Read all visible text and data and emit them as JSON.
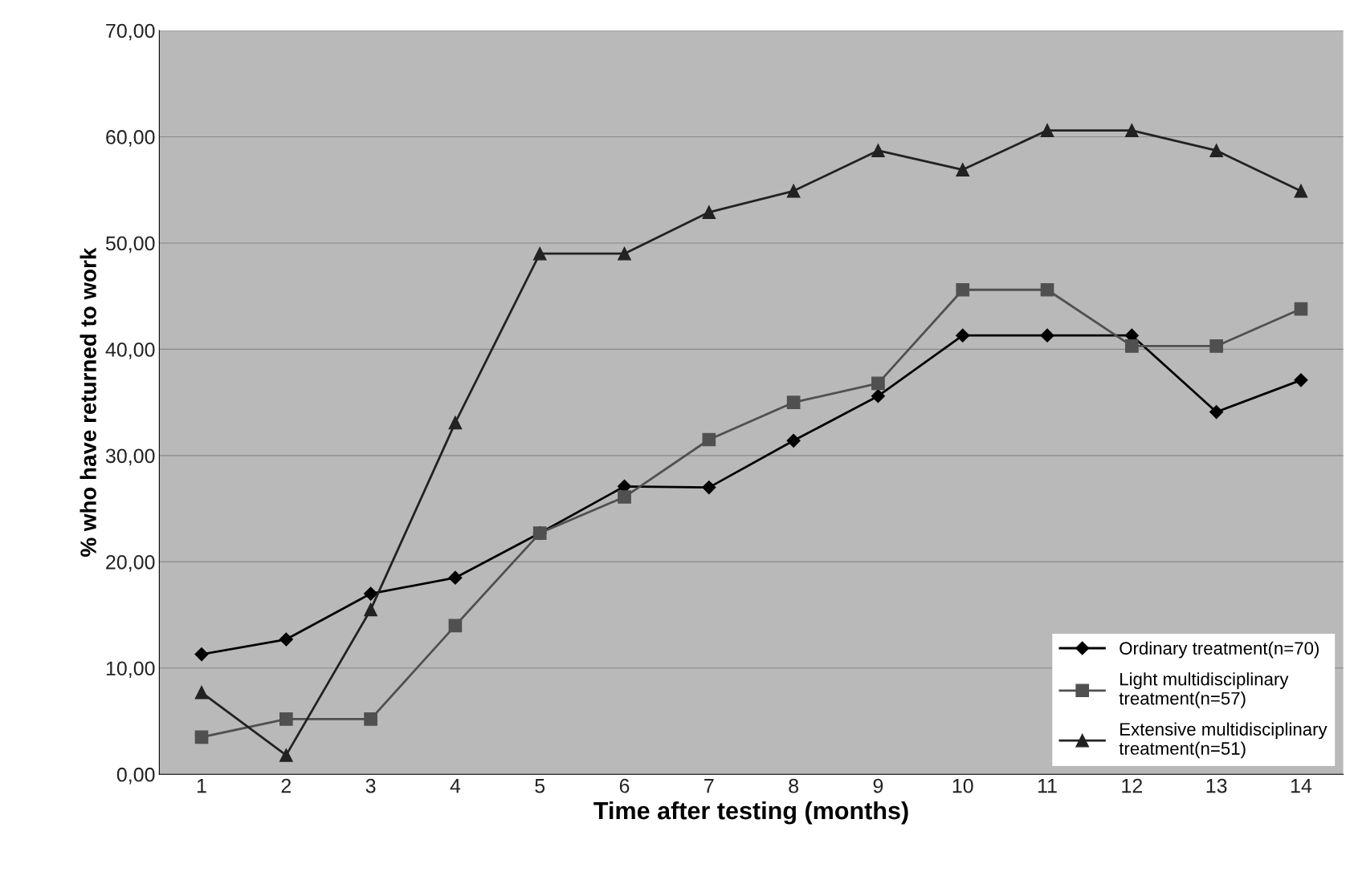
{
  "chart_data": {
    "type": "line",
    "xlabel": "Time after testing (months)",
    "ylabel": "% who have returned to work",
    "categories": [
      "1",
      "2",
      "3",
      "4",
      "5",
      "6",
      "7",
      "8",
      "9",
      "10",
      "11",
      "12",
      "13",
      "14"
    ],
    "series": [
      {
        "name": "Ordinary treatment(n=70)",
        "color": "#000000",
        "marker": "diamond",
        "values": [
          11.3,
          12.7,
          17.0,
          18.5,
          22.7,
          27.1,
          27.0,
          31.4,
          35.6,
          41.3,
          41.3,
          41.3,
          34.1,
          37.1
        ]
      },
      {
        "name": "Light multidisciplinary\ntreatment(n=57)",
        "color": "#505050",
        "marker": "square",
        "values": [
          3.5,
          5.2,
          5.2,
          14.0,
          22.7,
          26.1,
          31.5,
          35.0,
          36.8,
          45.6,
          45.6,
          40.3,
          40.3,
          43.8
        ]
      },
      {
        "name": "Extensive multidisciplinary\ntreatment(n=51)",
        "color": "#222222",
        "marker": "triangle",
        "values": [
          7.7,
          1.8,
          15.5,
          33.1,
          49.0,
          49.0,
          52.9,
          54.9,
          58.7,
          56.9,
          60.6,
          60.6,
          58.7,
          54.9
        ]
      }
    ],
    "ylim": [
      0,
      70
    ],
    "yticks": [
      {
        "value": 0,
        "label": "0,00"
      },
      {
        "value": 10,
        "label": "10,00"
      },
      {
        "value": 20,
        "label": "20,00"
      },
      {
        "value": 30,
        "label": "30,00"
      },
      {
        "value": 40,
        "label": "40,00"
      },
      {
        "value": 50,
        "label": "50,00"
      },
      {
        "value": 60,
        "label": "60,00"
      },
      {
        "value": 70,
        "label": "70,00"
      }
    ],
    "grid": "y",
    "legend": "bottom right",
    "line_style": "solid"
  }
}
